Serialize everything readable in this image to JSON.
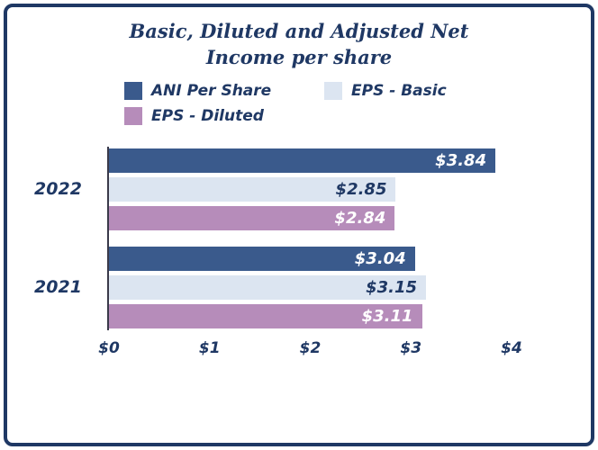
{
  "title": {
    "line1": "Basic, Diluted and Adjusted Net",
    "line2": "Income per share"
  },
  "legend": [
    {
      "label": "ANI Per Share",
      "color": "#3A5A8C"
    },
    {
      "label": "EPS - Basic",
      "color": "#DCE5F1"
    },
    {
      "label": "EPS - Diluted",
      "color": "#B68CBA"
    }
  ],
  "colors": {
    "frame_border": "#1F3864",
    "text": "#1F3864",
    "axis_line": "#3a3a4a",
    "background": "#FFFFFF"
  },
  "chart_data": {
    "type": "bar",
    "orientation": "horizontal",
    "title": "Basic, Diluted and Adjusted Net Income per share",
    "categories": [
      "2022",
      "2021"
    ],
    "series": [
      {
        "name": "ANI Per Share",
        "color": "#3A5A8C",
        "label_color": "#FFFFFF",
        "values": [
          3.84,
          3.04
        ],
        "labels": [
          "$3.84",
          "$3.04"
        ]
      },
      {
        "name": "EPS - Basic",
        "color": "#DCE5F1",
        "label_color": "#1F3864",
        "values": [
          2.85,
          3.15
        ],
        "labels": [
          "$2.85",
          "$3.15"
        ]
      },
      {
        "name": "EPS - Diluted",
        "color": "#B68CBA",
        "label_color": "#FFFFFF",
        "values": [
          2.84,
          3.11
        ],
        "labels": [
          "$2.84",
          "$3.11"
        ]
      }
    ],
    "x_ticks": [
      "$0",
      "$1",
      "$2",
      "$3",
      "$4"
    ],
    "x_range": [
      0,
      4
    ],
    "xlabel": "",
    "ylabel": "",
    "grid": false,
    "legend_position": "top"
  }
}
